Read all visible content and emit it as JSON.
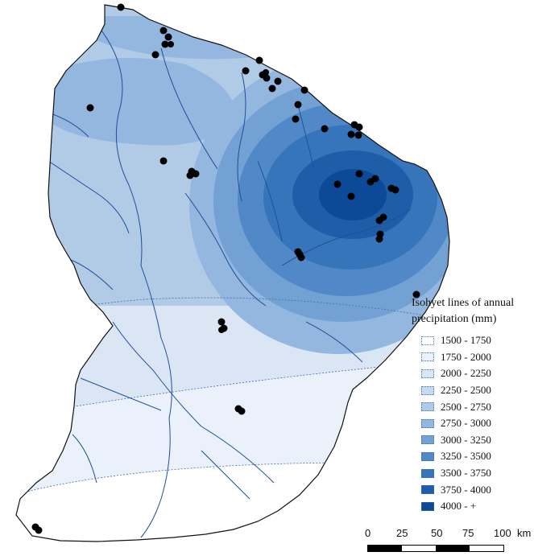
{
  "legend": {
    "title_line1": "Isohyet lines of annual",
    "title_line2": "precipitation (mm)",
    "classes": [
      {
        "label": "1500 - 1750",
        "color": "#ffffff"
      },
      {
        "label": "1750 - 2000",
        "color": "#eaf1fa"
      },
      {
        "label": "2000 - 2250",
        "color": "#dbe6f5"
      },
      {
        "label": "2250 - 2500",
        "color": "#c8daf0"
      },
      {
        "label": "2500 - 2750",
        "color": "#b1cbe7"
      },
      {
        "label": "2750 - 3000",
        "color": "#93b7df"
      },
      {
        "label": "3000 - 3250",
        "color": "#73a1d4"
      },
      {
        "label": "3250 - 3500",
        "color": "#5189c8"
      },
      {
        "label": "3500 - 3750",
        "color": "#3775bb"
      },
      {
        "label": "3750 - 4000",
        "color": "#1e5ea9"
      },
      {
        "label": "4000 - +",
        "color": "#0c4996"
      }
    ]
  },
  "scale_bar": {
    "labels": [
      "0",
      "25",
      "50",
      "75",
      "100"
    ],
    "unit": "km"
  }
}
